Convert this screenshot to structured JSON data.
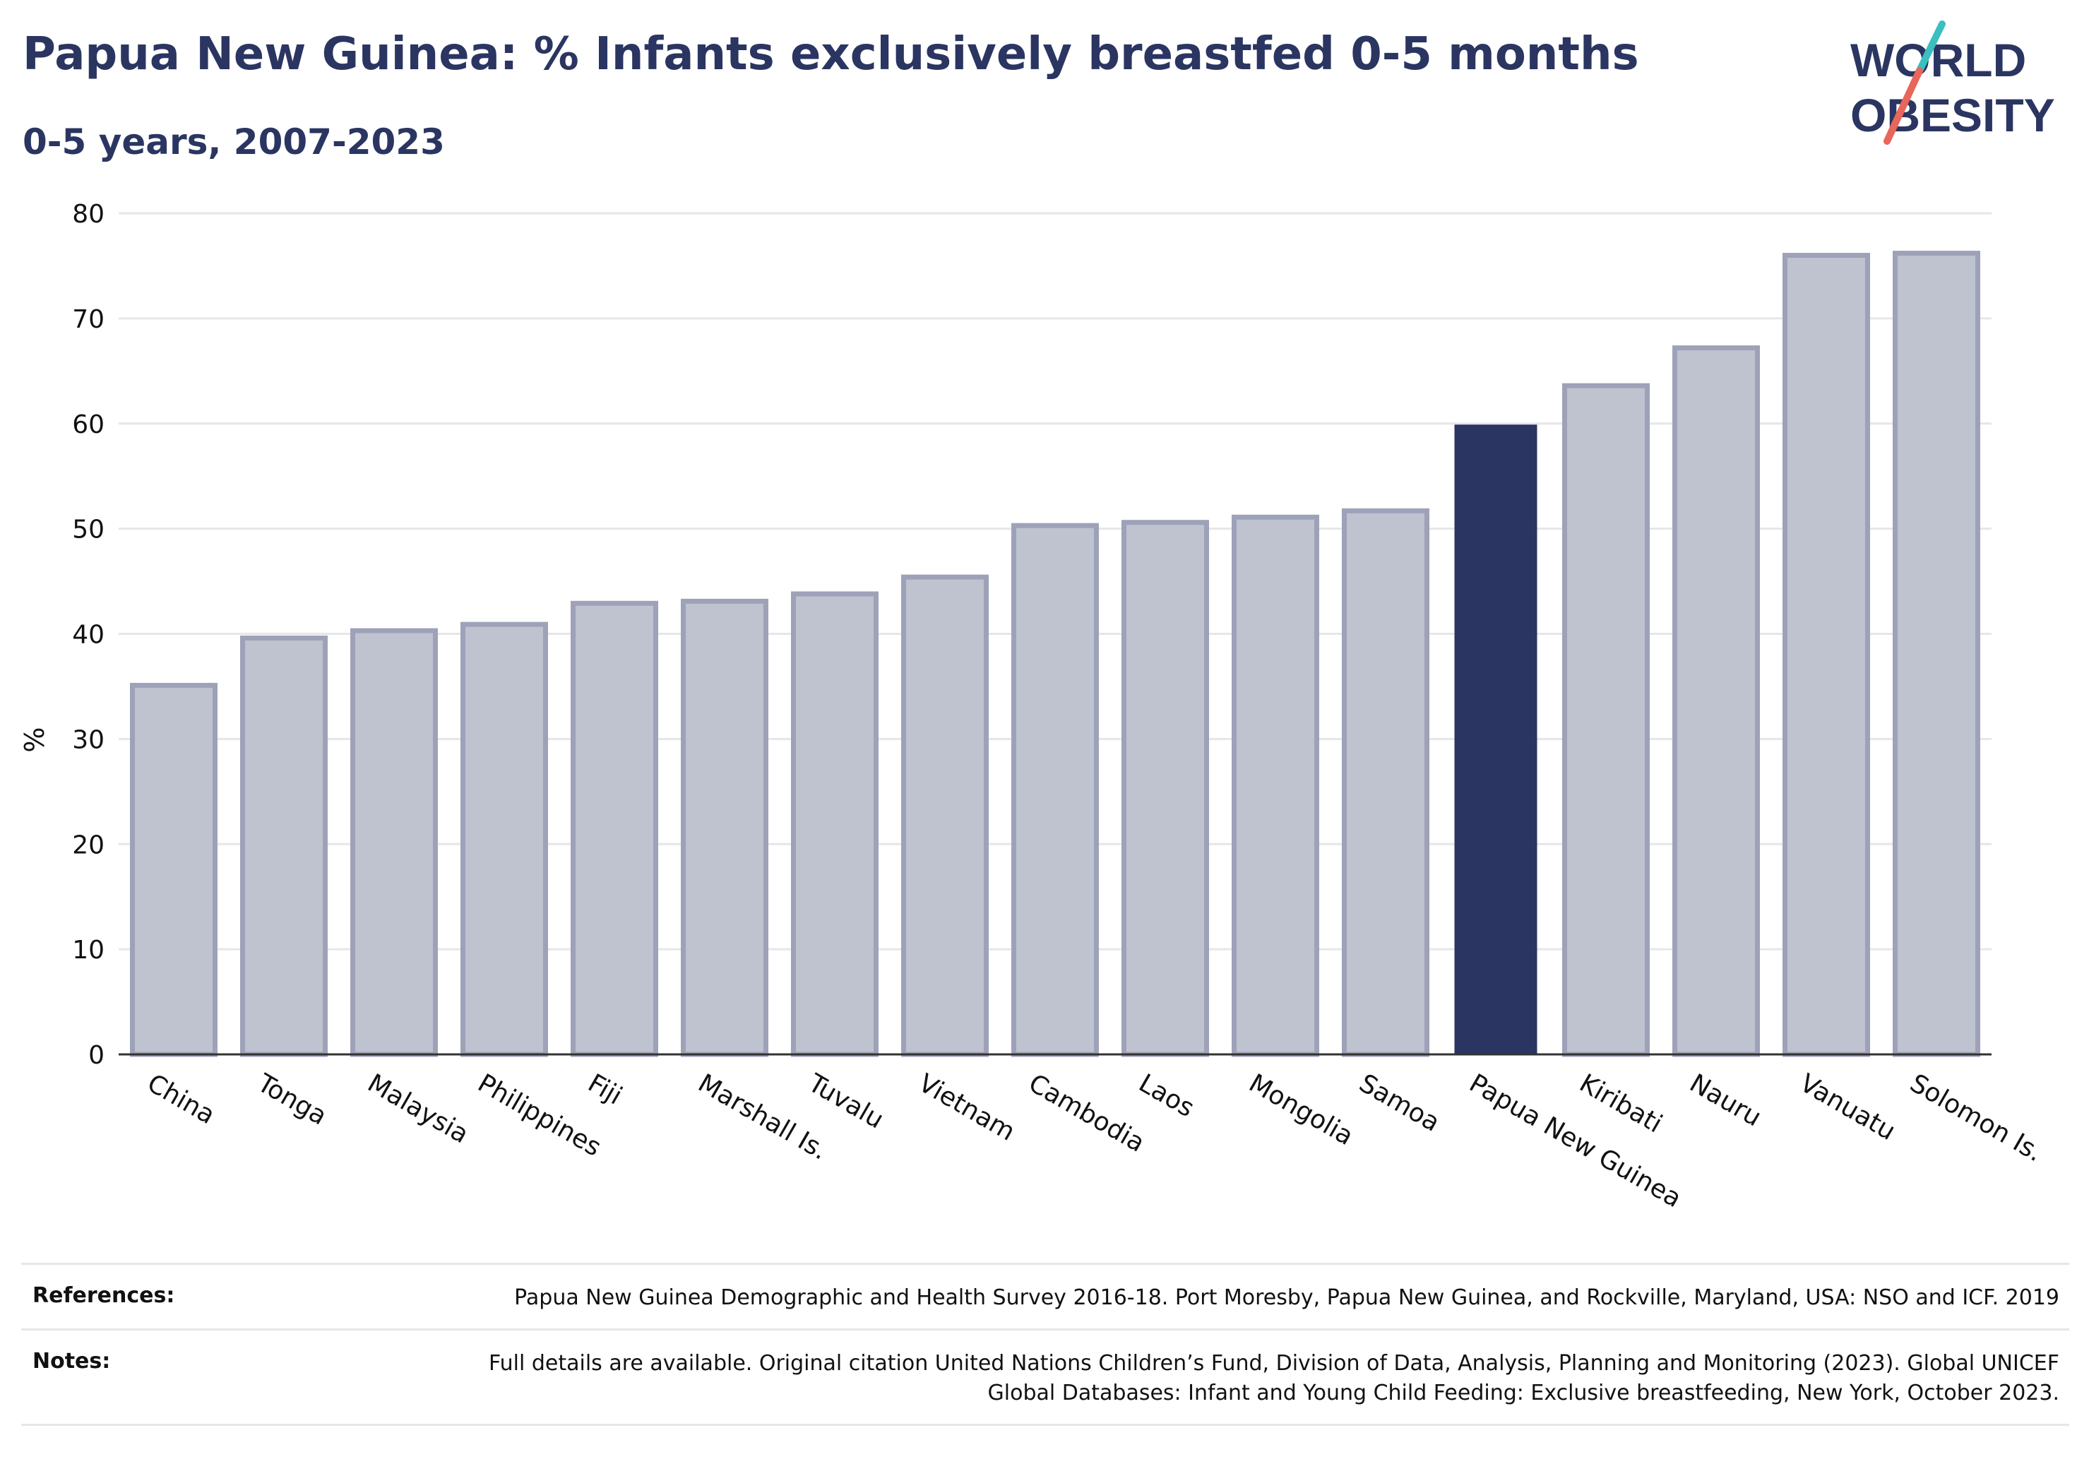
{
  "header": {
    "title": "Papua New Guinea: % Infants exclusively breastfed 0-5 months",
    "subtitle": "0-5 years, 2007-2023"
  },
  "logo": {
    "line1": "WORLD",
    "line2": "OBESITY"
  },
  "colors": {
    "highlight": "#2b3561",
    "bar_fill": "#bfc2cf",
    "bar_stroke": "#9ea2b8",
    "grid": "#e6e6ea",
    "logo_teal": "#3bbfbf",
    "logo_coral": "#e8665a"
  },
  "chart_data": {
    "type": "bar",
    "categories": [
      "China",
      "Tonga",
      "Malaysia",
      "Philippines",
      "Fiji",
      "Marshall Is.",
      "Tuvalu",
      "Vietnam",
      "Cambodia",
      "Laos",
      "Mongolia",
      "Samoa",
      "Papua New Guinea",
      "Kiribati",
      "Nauru",
      "Vanuatu",
      "Solomon Is."
    ],
    "values": [
      35.1,
      39.6,
      40.3,
      40.9,
      42.9,
      43.1,
      43.8,
      45.4,
      50.3,
      50.6,
      51.1,
      51.7,
      59.9,
      63.6,
      67.2,
      76.0,
      76.2
    ],
    "highlight": "Papua New Guinea",
    "ylabel": "%",
    "xlabel": "",
    "ylim": [
      0,
      80
    ],
    "yticks": [
      0,
      10,
      20,
      30,
      40,
      50,
      60,
      70,
      80
    ],
    "grid": true
  },
  "footer": {
    "references_label": "References:",
    "references_text": "Papua New Guinea Demographic and Health Survey 2016-18. Port Moresby, Papua New Guinea, and Rockville, Maryland, USA: NSO and ICF. 2019",
    "notes_label": "Notes:",
    "notes_text": "Full details are available. Original citation United Nations Children’s Fund, Division of Data, Analysis, Planning and Monitoring (2023). Global UNICEF Global Databases: Infant and Young Child Feeding: Exclusive breastfeeding, New York, October 2023."
  }
}
